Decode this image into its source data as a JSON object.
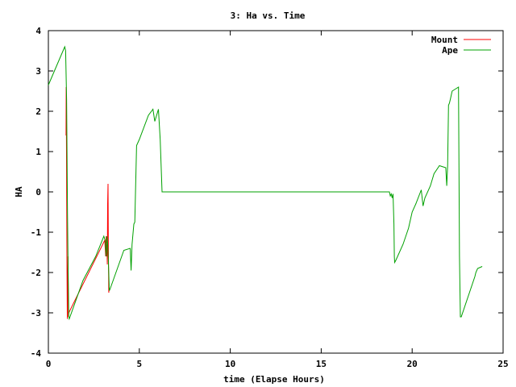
{
  "chart_data": {
    "type": "line",
    "title": "3: Ha vs. Time",
    "xlabel": "time (Elapse Hours)",
    "ylabel": "HA",
    "xlim": [
      0,
      25
    ],
    "ylim": [
      -4,
      4
    ],
    "xticks": [
      "0",
      "5",
      "10",
      "15",
      "20",
      "25"
    ],
    "xtick_values": [
      0,
      5,
      10,
      15,
      20,
      25
    ],
    "yticks": [
      "-4",
      "-3",
      "-2",
      "-1",
      "0",
      "1",
      "2",
      "3",
      "4"
    ],
    "ytick_values": [
      -4,
      -3,
      -2,
      -1,
      0,
      1,
      2,
      3,
      4
    ],
    "grid": false,
    "legend_position": "top-right",
    "series": [
      {
        "name": "Mount",
        "color": "#ff0000",
        "x": [
          0.97,
          0.98,
          1.0,
          1.02,
          1.04,
          1.06,
          1.08,
          1.1,
          1.12,
          3.1,
          3.15,
          3.18,
          3.2,
          3.22,
          3.24,
          3.26,
          3.28,
          3.3,
          3.32,
          3.34
        ],
        "y": [
          1.4,
          2.6,
          0.5,
          -1.6,
          -3.15,
          -2.2,
          -1.6,
          -3.1,
          -3.0,
          -1.2,
          -1.6,
          -1.1,
          -1.6,
          -1.3,
          -1.8,
          -0.3,
          0.2,
          -1.4,
          -2.5,
          -2.4
        ]
      },
      {
        "name": "Ape",
        "color": "#00a000",
        "x": [
          0.0,
          0.9,
          0.95,
          1.0,
          1.05,
          1.08,
          1.12,
          1.15,
          1.9,
          2.6,
          3.05,
          3.12,
          3.18,
          3.22,
          3.26,
          3.3,
          3.35,
          3.4,
          4.15,
          4.5,
          4.55,
          4.6,
          4.7,
          4.75,
          4.85,
          5.0,
          5.5,
          5.75,
          5.85,
          6.05,
          6.15,
          6.25,
          6.3,
          18.75,
          18.8,
          18.85,
          18.9,
          18.95,
          19.0,
          19.02,
          19.04,
          19.1,
          19.5,
          19.8,
          20.0,
          20.2,
          20.5,
          20.6,
          20.7,
          21.0,
          21.2,
          21.5,
          21.85,
          21.9,
          21.95,
          22.0,
          22.05,
          22.1,
          22.15,
          22.2,
          22.55,
          22.6,
          22.65,
          22.7,
          23.45,
          23.5,
          23.6,
          23.85
        ],
        "y": [
          2.65,
          3.6,
          3.5,
          2.3,
          -0.5,
          -1.8,
          -3.1,
          -3.15,
          -2.2,
          -1.6,
          -1.1,
          -1.2,
          -1.6,
          -1.1,
          -1.3,
          -1.7,
          -2.45,
          -2.4,
          -1.45,
          -1.4,
          -1.95,
          -1.3,
          -0.8,
          -0.75,
          1.15,
          1.3,
          1.9,
          2.05,
          1.75,
          2.05,
          1.3,
          0.0,
          0.0,
          0.0,
          -0.1,
          -0.05,
          -0.15,
          -0.05,
          -0.8,
          -1.6,
          -1.75,
          -1.7,
          -1.3,
          -0.9,
          -0.5,
          -0.3,
          0.05,
          -0.35,
          -0.15,
          0.15,
          0.45,
          0.65,
          0.6,
          0.15,
          0.65,
          2.15,
          2.2,
          2.3,
          2.4,
          2.5,
          2.6,
          -1.6,
          -3.1,
          -3.1,
          -2.1,
          -2.0,
          -1.9,
          -1.85
        ]
      }
    ]
  }
}
